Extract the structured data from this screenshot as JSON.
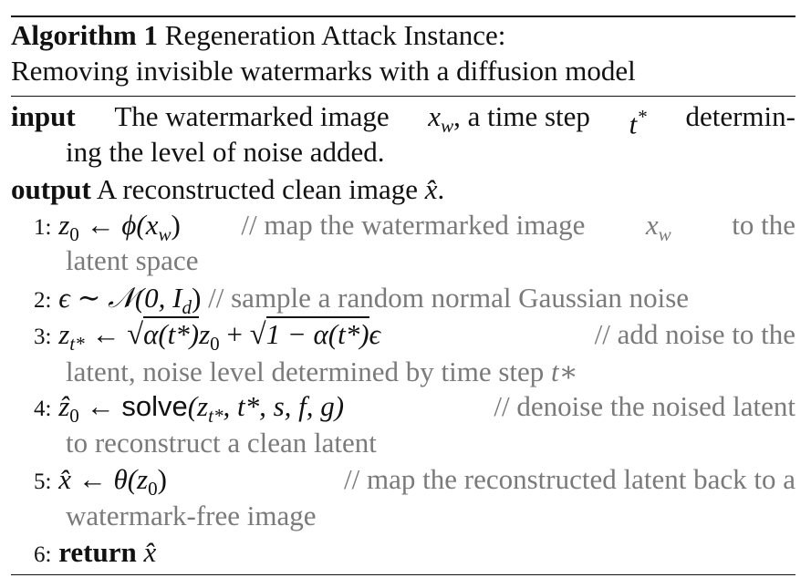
{
  "caption": {
    "label": "Algorithm 1",
    "title_line1": "Regeneration Attack Instance:",
    "title_line2": "Removing invisible watermarks with a diffusion model"
  },
  "io": {
    "input_keyword": "input",
    "input_text_a": "The watermarked image",
    "input_var": "x",
    "input_var_sub": "w",
    "input_text_b": ", a time step",
    "input_t": "t",
    "input_t_sup": "*",
    "input_text_c": "determin-",
    "input_line2": "ing the level of noise added.",
    "output_keyword": "output",
    "output_text": "A reconstructed clean image",
    "output_var": "x̂",
    "output_end": "."
  },
  "steps": [
    {
      "number": "1:",
      "math": "z",
      "math_sub": "0",
      "arrow": "←",
      "func": "ϕ(x",
      "func_sub": "w",
      "func_close": ")",
      "comment_a": "// map the watermarked image",
      "comment_var": "x",
      "comment_var_sub": "w",
      "comment_b": "to the",
      "continuation": "latent space"
    },
    {
      "number": "2:",
      "math": "ϵ ∼ 𝒩(0, I",
      "math_sub": "d",
      "math_close": ")",
      "comment": "// sample a random normal Gaussian noise"
    },
    {
      "number": "3:",
      "lhs": "z",
      "lhs_sub": "t*",
      "arrow": "←",
      "rad1": "α(t*)",
      "mid": "z",
      "mid_sub": "0",
      "plus": "+",
      "rad2": "1 − α(t*)",
      "eps": "ϵ",
      "comment": "// add noise to the",
      "continuation_a": "latent, noise level determined by time step",
      "continuation_var": "t∗"
    },
    {
      "number": "4:",
      "lhs": "ẑ",
      "lhs_sub": "0",
      "arrow": "←",
      "func": "solve",
      "args_a": "(z",
      "args_sub": "t*",
      "args_b": ", t*, s, f, g)",
      "comment": "// denoise the noised latent",
      "continuation": "to reconstruct a clean latent"
    },
    {
      "number": "5:",
      "lhs": "x̂",
      "arrow": "←",
      "func": "θ(z",
      "func_sub": "0",
      "func_close": ")",
      "comment": "// map the reconstructed latent back to a",
      "continuation": "watermark-free image"
    },
    {
      "number": "6:",
      "keyword": "return",
      "var": "x̂"
    }
  ]
}
